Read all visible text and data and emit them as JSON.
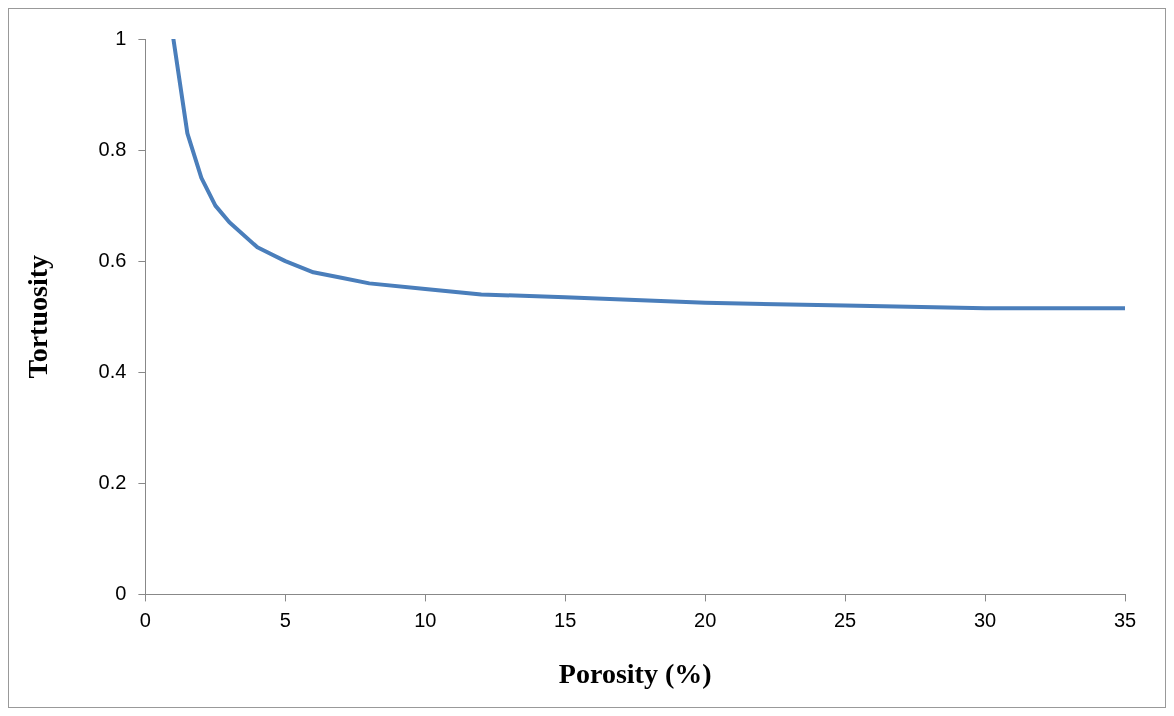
{
  "chart_data": {
    "type": "line",
    "xlabel": "Porosity (%)",
    "ylabel": "Tortuosity",
    "xlim": [
      0,
      35
    ],
    "xticks": [
      0,
      5,
      10,
      15,
      20,
      25,
      30,
      35
    ],
    "ylim": [
      0,
      1
    ],
    "yticks": [
      0,
      0.2,
      0.4,
      0.6,
      0.8,
      1
    ],
    "grid": false,
    "legend": false,
    "marker": "none",
    "line_style": "solid",
    "series": [
      {
        "color": "#4a7ebb",
        "x": [
          1,
          1.5,
          2,
          2.5,
          3,
          4,
          5,
          6,
          7,
          8,
          10,
          12,
          15,
          20,
          25,
          30,
          35
        ],
        "values": [
          1,
          0.83,
          0.75,
          0.7,
          0.67,
          0.625,
          0.6,
          0.58,
          0.57,
          0.56,
          0.55,
          0.54,
          0.535,
          0.525,
          0.52,
          0.515,
          0.515
        ]
      }
    ]
  }
}
